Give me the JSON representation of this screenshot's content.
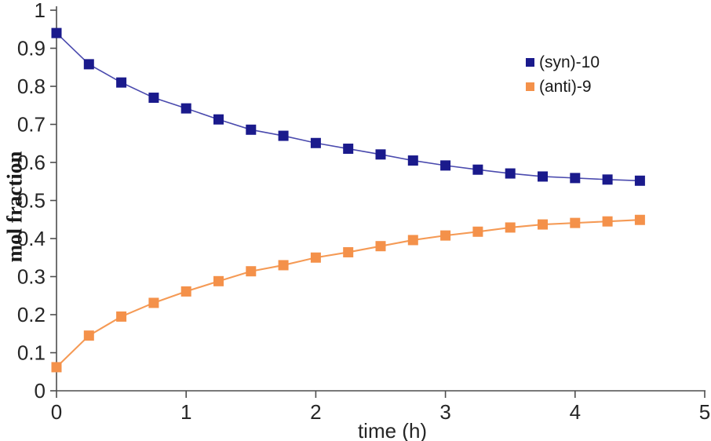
{
  "figure": {
    "background": "#ffffff",
    "axis_color": "#4d4d4d",
    "tick_text_color": "#262626"
  },
  "chart_data": {
    "type": "line",
    "title": "",
    "xlabel": "time (h)",
    "ylabel": "mol fraction",
    "xlim": [
      0,
      5
    ],
    "ylim": [
      0,
      1
    ],
    "x_ticks": [
      0,
      1,
      2,
      3,
      4,
      5
    ],
    "x_tick_labels": [
      "0",
      "1",
      "2",
      "3",
      "4",
      "5"
    ],
    "y_ticks": [
      0,
      0.1,
      0.2,
      0.3,
      0.4,
      0.5,
      0.6,
      0.7,
      0.8,
      0.9,
      1
    ],
    "y_tick_labels": [
      "0",
      "0.1",
      "0.2",
      "0.3",
      "0.4",
      "0.5",
      "0.6",
      "0.7",
      "0.8",
      "0.9",
      "1"
    ],
    "grid": false,
    "legend_position": "inside-upper-right",
    "x": [
      0,
      0.25,
      0.5,
      0.75,
      1,
      1.25,
      1.5,
      1.75,
      2,
      2.25,
      2.5,
      2.75,
      3,
      3.25,
      3.5,
      3.75,
      4,
      4.25,
      4.5
    ],
    "series": [
      {
        "name": "(syn)-10",
        "marker": "square",
        "marker_color": "#1A1A8C",
        "line_color": "#4A4AAE",
        "values": [
          0.94,
          0.858,
          0.81,
          0.77,
          0.742,
          0.713,
          0.686,
          0.67,
          0.651,
          0.636,
          0.621,
          0.605,
          0.592,
          0.581,
          0.571,
          0.563,
          0.559,
          0.555,
          0.552
        ]
      },
      {
        "name": "(anti)-9",
        "marker": "square",
        "marker_color": "#F4914A",
        "line_color": "#F59A55",
        "values": [
          0.062,
          0.145,
          0.195,
          0.231,
          0.261,
          0.288,
          0.314,
          0.33,
          0.35,
          0.364,
          0.38,
          0.396,
          0.408,
          0.418,
          0.429,
          0.437,
          0.441,
          0.445,
          0.449
        ]
      }
    ]
  }
}
